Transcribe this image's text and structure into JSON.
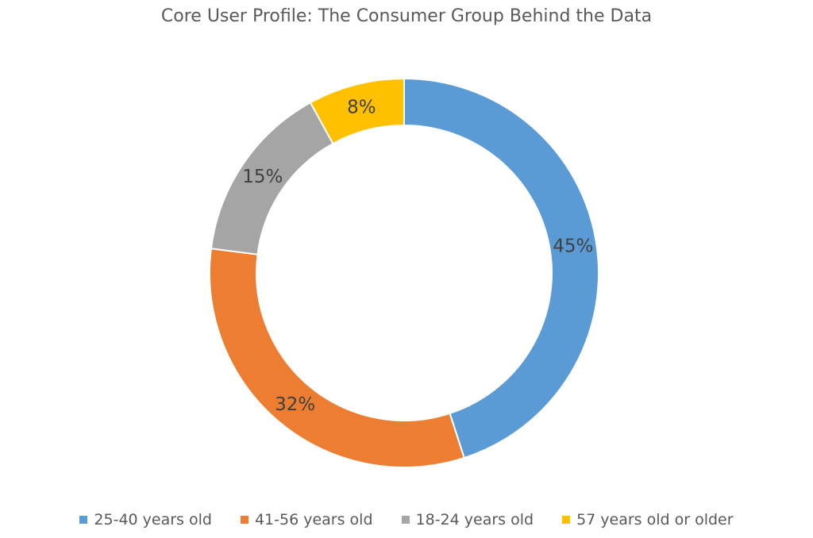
{
  "chart_data": {
    "type": "pie",
    "subtype": "donut",
    "title": "Core User Profile: The Consumer Group Behind the Data",
    "legend_position": "bottom",
    "slices": [
      {
        "label": "25-40 years old",
        "value": 45,
        "display": "45%",
        "color": "#5B9BD5"
      },
      {
        "label": "41-56 years old",
        "value": 32,
        "display": "32%",
        "color": "#ED7D31"
      },
      {
        "label": "18-24 years old",
        "value": 15,
        "display": "15%",
        "color": "#A5A5A5"
      },
      {
        "label": "57 years old or older",
        "value": 8,
        "display": "8%",
        "color": "#FFC000"
      }
    ]
  }
}
